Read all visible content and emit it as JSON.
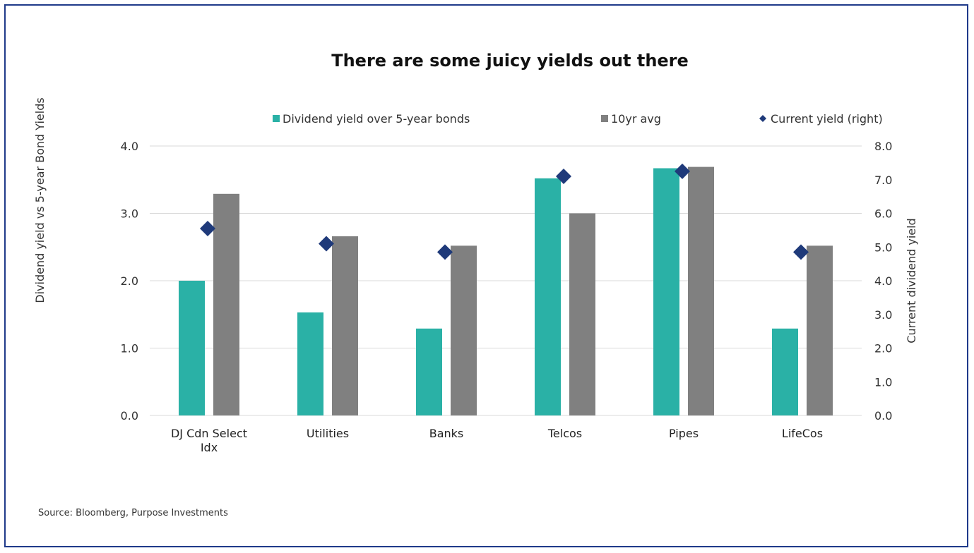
{
  "chart_data": {
    "type": "bar",
    "title": "There are some juicy yields out there",
    "categories": [
      [
        "DJ Cdn Select",
        "Idx"
      ],
      [
        "Utilities"
      ],
      [
        "Banks"
      ],
      [
        "Telcos"
      ],
      [
        "Pipes"
      ],
      [
        "LifeCos"
      ]
    ],
    "series": [
      {
        "name": "Dividend yield over 5-year bonds",
        "type": "bar",
        "axis": "left",
        "color": "#2ab1a6",
        "values": [
          2.0,
          1.53,
          1.29,
          3.52,
          3.67,
          1.29
        ]
      },
      {
        "name": "10yr avg",
        "type": "bar",
        "axis": "left",
        "color": "#808080",
        "values": [
          3.29,
          2.66,
          2.52,
          3.0,
          3.69,
          2.52
        ]
      },
      {
        "name": "Current yield (right)",
        "type": "marker",
        "axis": "right",
        "color": "#1f3a7a",
        "values": [
          5.55,
          5.1,
          4.85,
          7.1,
          7.25,
          4.85
        ]
      }
    ],
    "left_axis": {
      "label": "Dividend yield vs 5-year Bond Yields",
      "ylim": [
        0,
        4
      ],
      "ticks": [
        "0.0",
        "1.0",
        "2.0",
        "3.0",
        "4.0"
      ]
    },
    "right_axis": {
      "label": "Current dividend yield",
      "ylim": [
        0,
        8
      ],
      "ticks": [
        "0.0",
        "1.0",
        "2.0",
        "3.0",
        "4.0",
        "5.0",
        "6.0",
        "7.0",
        "8.0"
      ]
    },
    "legend_position": "top",
    "grid": true
  },
  "source": "Source: Bloomberg, Purpose Investments"
}
